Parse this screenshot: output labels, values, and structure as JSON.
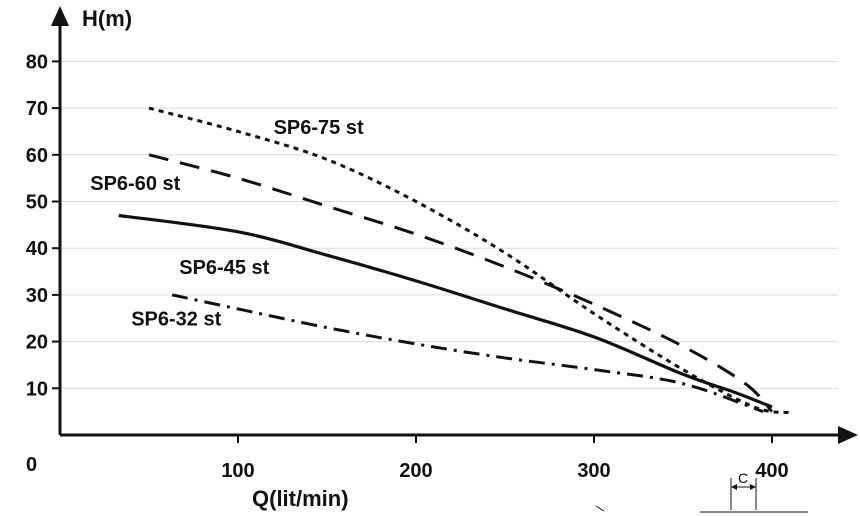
{
  "chart_data": {
    "type": "line",
    "xlabel": "Q(lit/min)",
    "ylabel": "H(m)",
    "xlim": [
      0,
      430
    ],
    "ylim": [
      0,
      85
    ],
    "xticks": [
      100,
      200,
      300,
      400
    ],
    "yticks": [
      10,
      20,
      30,
      40,
      50,
      60,
      70,
      80
    ],
    "origin_label": "0",
    "grid": "horizontal",
    "series": [
      {
        "name": "SP6-75 st",
        "style": "dotted",
        "x": [
          50,
          100,
          150,
          200,
          250,
          300,
          350,
          390,
          410
        ],
        "y": [
          70,
          65,
          59,
          50,
          39,
          26,
          14,
          6,
          4.8
        ]
      },
      {
        "name": "SP6-60 st",
        "style": "long-dash",
        "x": [
          50,
          100,
          150,
          200,
          250,
          300,
          350,
          385,
          400
        ],
        "y": [
          60,
          55,
          49,
          43,
          36,
          28,
          19,
          11,
          5
        ]
      },
      {
        "name": "SP6-45 st",
        "style": "solid",
        "x": [
          33,
          100,
          150,
          200,
          250,
          300,
          350,
          380,
          400
        ],
        "y": [
          47,
          43.5,
          38.5,
          33,
          27,
          21,
          13,
          9,
          6
        ]
      },
      {
        "name": "SP6-32 st",
        "style": "dash-dot",
        "x": [
          63,
          100,
          150,
          200,
          250,
          300,
          350,
          395
        ],
        "y": [
          30,
          27,
          23,
          19.5,
          16.5,
          14,
          11,
          5
        ]
      }
    ],
    "annotations": {
      "corner_mark": "C"
    }
  },
  "colors": {
    "line": "#111111",
    "grid": "#d9d9d9",
    "background": "#ffffff"
  }
}
